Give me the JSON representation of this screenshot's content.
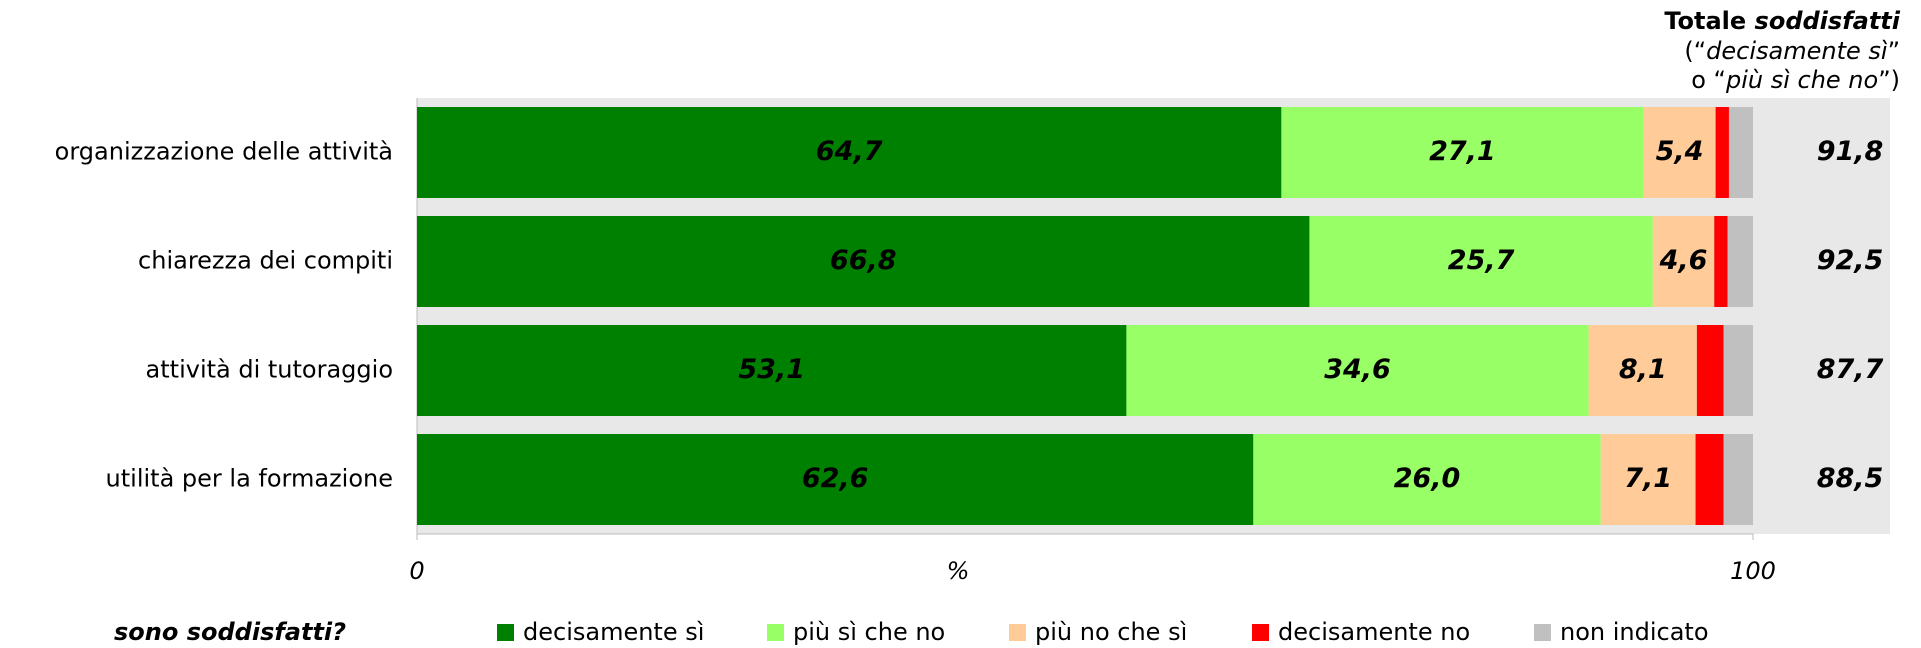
{
  "chart_data": {
    "type": "stacked-barh",
    "categories": [
      "organizzazione delle attività",
      "chiarezza dei compiti",
      "attività di tutoraggio",
      "utilità per la formazione"
    ],
    "series": [
      {
        "name": "decisamente sì",
        "color": "#008000",
        "label_color": "#ffffff",
        "values": [
          64.7,
          66.8,
          53.1,
          62.6
        ],
        "value_labels": [
          "64,7",
          "66,8",
          "53,1",
          "62,6"
        ]
      },
      {
        "name": "più sì che no",
        "color": "#99ff66",
        "label_color": "#000000",
        "values": [
          27.1,
          25.7,
          34.6,
          26.0
        ],
        "value_labels": [
          "27,1",
          "25,7",
          "34,6",
          "26,0"
        ]
      },
      {
        "name": "più no che sì",
        "color": "#ffcc99",
        "label_color": "#000000",
        "values": [
          5.4,
          4.6,
          8.1,
          7.1
        ],
        "value_labels": [
          "5,4",
          "4,6",
          "8,1",
          "7,1"
        ]
      },
      {
        "name": "decisamente no",
        "color": "#ff0000",
        "values": [
          1.0,
          1.0,
          2.0,
          2.1
        ]
      },
      {
        "name": "non indicato",
        "color": "#c0c0c0",
        "values": [
          1.8,
          1.9,
          2.2,
          2.2
        ]
      }
    ],
    "totals": {
      "color": "#008000",
      "values": [
        91.8,
        92.5,
        87.7,
        88.5
      ],
      "value_labels": [
        "91,8",
        "92,5",
        "87,7",
        "88,5"
      ]
    },
    "totals_header": {
      "title": [
        "Totale",
        "soddisfatti"
      ],
      "note": [
        [
          "(“",
          "decisamente sì",
          "”"
        ],
        [
          "o “",
          "più sì che no",
          "”)"
        ]
      ]
    },
    "xlabel": "%",
    "xlim": [
      0,
      100
    ],
    "xticks": [
      0,
      100
    ],
    "legend_title": "sono soddisfatti?",
    "legend": "bottom"
  }
}
